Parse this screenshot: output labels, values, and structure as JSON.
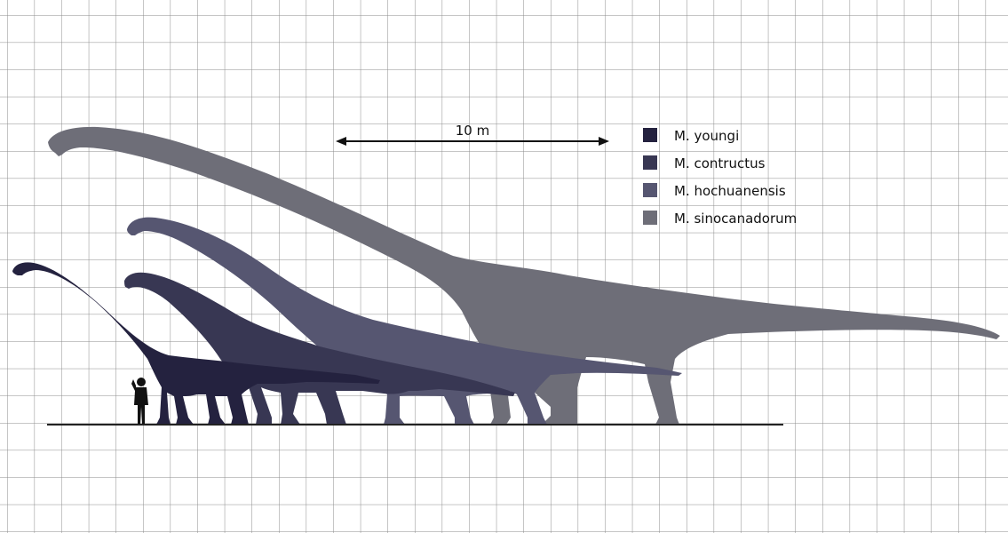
{
  "scale_bar": {
    "label": "10 m"
  },
  "legend": {
    "items": [
      {
        "label": "M. youngi",
        "color": "#24223f"
      },
      {
        "label": "M. contructus",
        "color": "#383753"
      },
      {
        "label": "M. hochuanensis",
        "color": "#565671"
      },
      {
        "label": "M. sinocanadorum",
        "color": "#6e6e78"
      }
    ]
  },
  "colors": {
    "grid": "#8c8c8c",
    "ground": "#222222",
    "human": "#111111",
    "background": "#ffffff"
  },
  "icons": {
    "human": "human-silhouette-icon",
    "arrow": "double-arrow-icon"
  }
}
